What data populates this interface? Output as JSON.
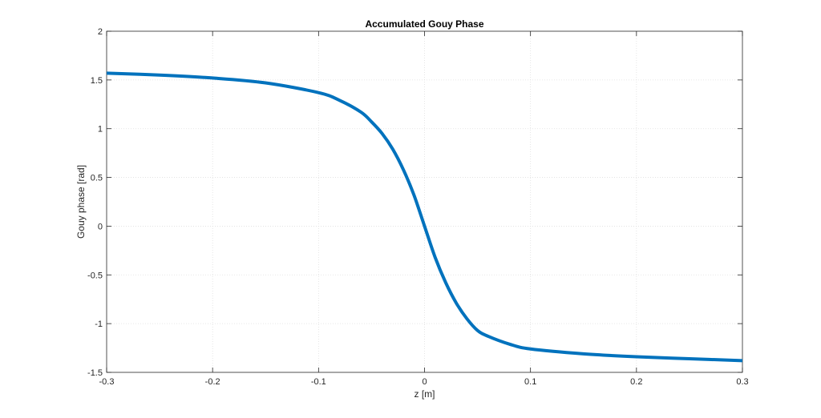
{
  "chart_data": {
    "type": "line",
    "title": "Accumulated Gouy Phase",
    "xlabel": "z [m]",
    "ylabel": "Gouy phase [rad]",
    "xlim": [
      -0.3,
      0.3
    ],
    "ylim": [
      -1.5,
      2
    ],
    "grid": true,
    "x_ticks": [
      -0.3,
      -0.2,
      -0.1,
      0,
      0.1,
      0.2,
      0.3
    ],
    "x_tick_labels": [
      "-0.3",
      "-0.2",
      "-0.1",
      "0",
      "0.1",
      "0.2",
      "0.3"
    ],
    "y_ticks": [
      -1.5,
      -1,
      -0.5,
      0,
      0.5,
      1,
      1.5,
      2
    ],
    "y_tick_labels": [
      "-1.5",
      "-1",
      "-0.5",
      "0",
      "0.5",
      "1",
      "1.5",
      "2"
    ],
    "series": [
      {
        "color": "#0072bd",
        "x": [
          -0.3,
          -0.25,
          -0.2,
          -0.15,
          -0.1,
          -0.08,
          -0.06,
          -0.05,
          -0.04,
          -0.03,
          -0.02,
          -0.01,
          0,
          0.01,
          0.02,
          0.03,
          0.04,
          0.05,
          0.06,
          0.08,
          0.1,
          0.15,
          0.2,
          0.25,
          0.3
        ],
        "values": [
          1.57,
          1.55,
          1.52,
          1.47,
          1.37,
          1.29,
          1.17,
          1.07,
          0.95,
          0.79,
          0.58,
          0.32,
          0.0,
          -0.32,
          -0.58,
          -0.79,
          -0.95,
          -1.07,
          -1.13,
          -1.21,
          -1.26,
          -1.31,
          -1.34,
          -1.36,
          -1.38
        ]
      }
    ]
  }
}
